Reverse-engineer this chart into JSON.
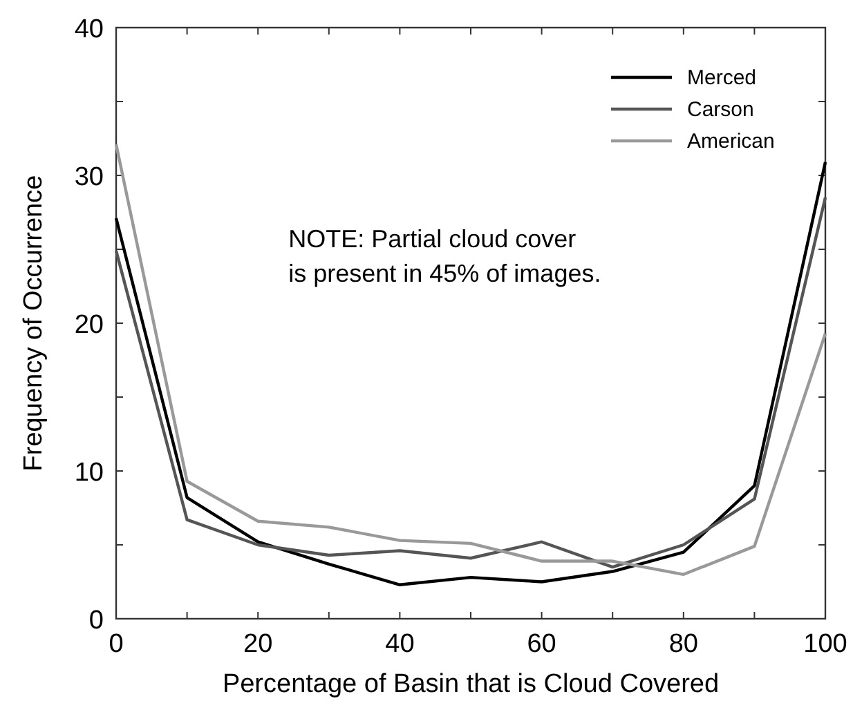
{
  "chart_data": {
    "type": "line",
    "xlabel": "Percentage of Basin that is Cloud Covered",
    "ylabel": "Frequency of Occurrence",
    "annotations": [
      "NOTE: Partial cloud cover\nis present in 45% of images."
    ],
    "x": [
      0,
      10,
      20,
      30,
      40,
      50,
      60,
      70,
      80,
      90,
      100
    ],
    "series": [
      {
        "name": "Merced",
        "color": "#000000",
        "values": [
          27.1,
          8.2,
          5.2,
          3.7,
          2.3,
          2.8,
          2.5,
          3.2,
          4.5,
          9.0,
          30.9
        ]
      },
      {
        "name": "Carson",
        "color": "#555555",
        "values": [
          24.9,
          6.7,
          5.0,
          4.3,
          4.6,
          4.1,
          5.2,
          3.5,
          5.0,
          8.1,
          28.5
        ]
      },
      {
        "name": "American",
        "color": "#999999",
        "values": [
          32.1,
          9.3,
          6.6,
          6.2,
          5.3,
          5.1,
          3.9,
          3.9,
          3.0,
          4.9,
          19.3
        ]
      }
    ],
    "xlim": [
      0,
      100
    ],
    "ylim": [
      0,
      40
    ],
    "xticks": [
      0,
      {
        "value": 10,
        "label": null
      },
      20,
      {
        "value": 30,
        "label": null
      },
      40,
      {
        "value": 50,
        "label": null
      },
      60,
      {
        "value": 70,
        "label": null
      },
      80,
      {
        "value": 90,
        "label": null
      },
      100
    ],
    "yticks": [
      0,
      {
        "value": 5,
        "label": null
      },
      10,
      {
        "value": 15,
        "label": null
      },
      20,
      {
        "value": 25,
        "label": null
      },
      30,
      {
        "value": 35,
        "label": null
      },
      40
    ],
    "legend": "top right",
    "grid": false,
    "marker": "none",
    "line_style": "solid"
  }
}
